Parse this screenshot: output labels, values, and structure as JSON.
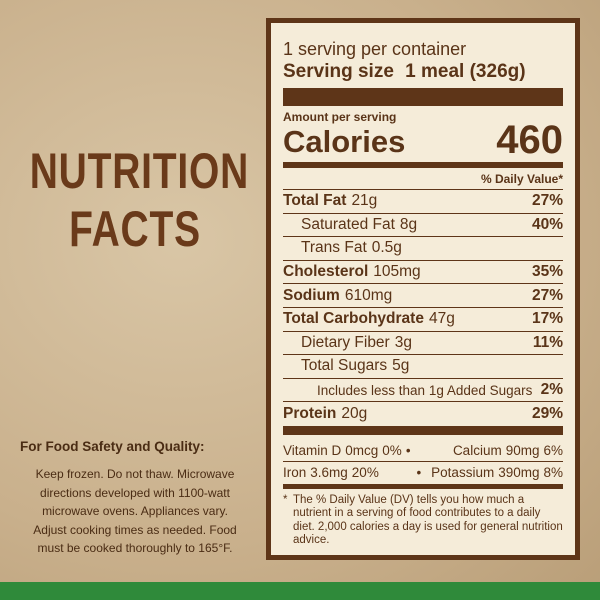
{
  "heading": {
    "line1": "NUTRITION",
    "line2": "FACTS"
  },
  "safety": {
    "title": "For Food Safety and Quality:",
    "lines": [
      "Keep frozen. Do not thaw. Microwave",
      "directions developed with 1100-watt",
      "microwave ovens. Appliances vary.",
      "Adjust cooking times as needed. Food",
      "must be cooked thoroughly to 165°F."
    ]
  },
  "label": {
    "servings": "1 serving per container",
    "serving_size_label": "Serving size",
    "serving_size_value": "1 meal (326g)",
    "amount_per_serving": "Amount per serving",
    "calories_label": "Calories",
    "calories_value": "460",
    "daily_value_header": "% Daily Value*",
    "nutrients": [
      {
        "name": "Total Fat",
        "amount": "21g",
        "daily_value": "27%"
      },
      {
        "name": "Saturated Fat",
        "amount": "8g",
        "daily_value": "40%"
      },
      {
        "name": "Trans Fat",
        "amount": "0.5g"
      },
      {
        "name": "Cholesterol",
        "amount": "105mg",
        "daily_value": "35%"
      },
      {
        "name": "Sodium",
        "amount": "610mg",
        "daily_value": "27%"
      },
      {
        "name": "Total Carbohydrate",
        "amount": "47g",
        "daily_value": "17%"
      },
      {
        "name": "Dietary Fiber",
        "amount": "3g",
        "daily_value": "11%"
      },
      {
        "name": "Total Sugars",
        "amount": "5g"
      },
      {
        "name": "Includes less than 1g Added Sugars",
        "daily_value": "2%"
      },
      {
        "name": "Protein",
        "amount": "20g",
        "daily_value": "29%"
      }
    ],
    "vitamins": [
      {
        "name": "Vitamin D",
        "amount": "0mcg",
        "daily_value": "0%"
      },
      {
        "name": "Calcium",
        "amount": "90mg",
        "daily_value": "6%"
      },
      {
        "name": "Iron",
        "amount": "3.6mg",
        "daily_value": "20%"
      },
      {
        "name": "Potassium",
        "amount": "390mg",
        "daily_value": "8%"
      }
    ],
    "footnote": {
      "mark": "*",
      "text": "The % Daily Value (DV) tells you how much a nutrient in a serving of food contributes to a daily diet. 2,000 calories a day is used for general nutrition advice."
    }
  }
}
